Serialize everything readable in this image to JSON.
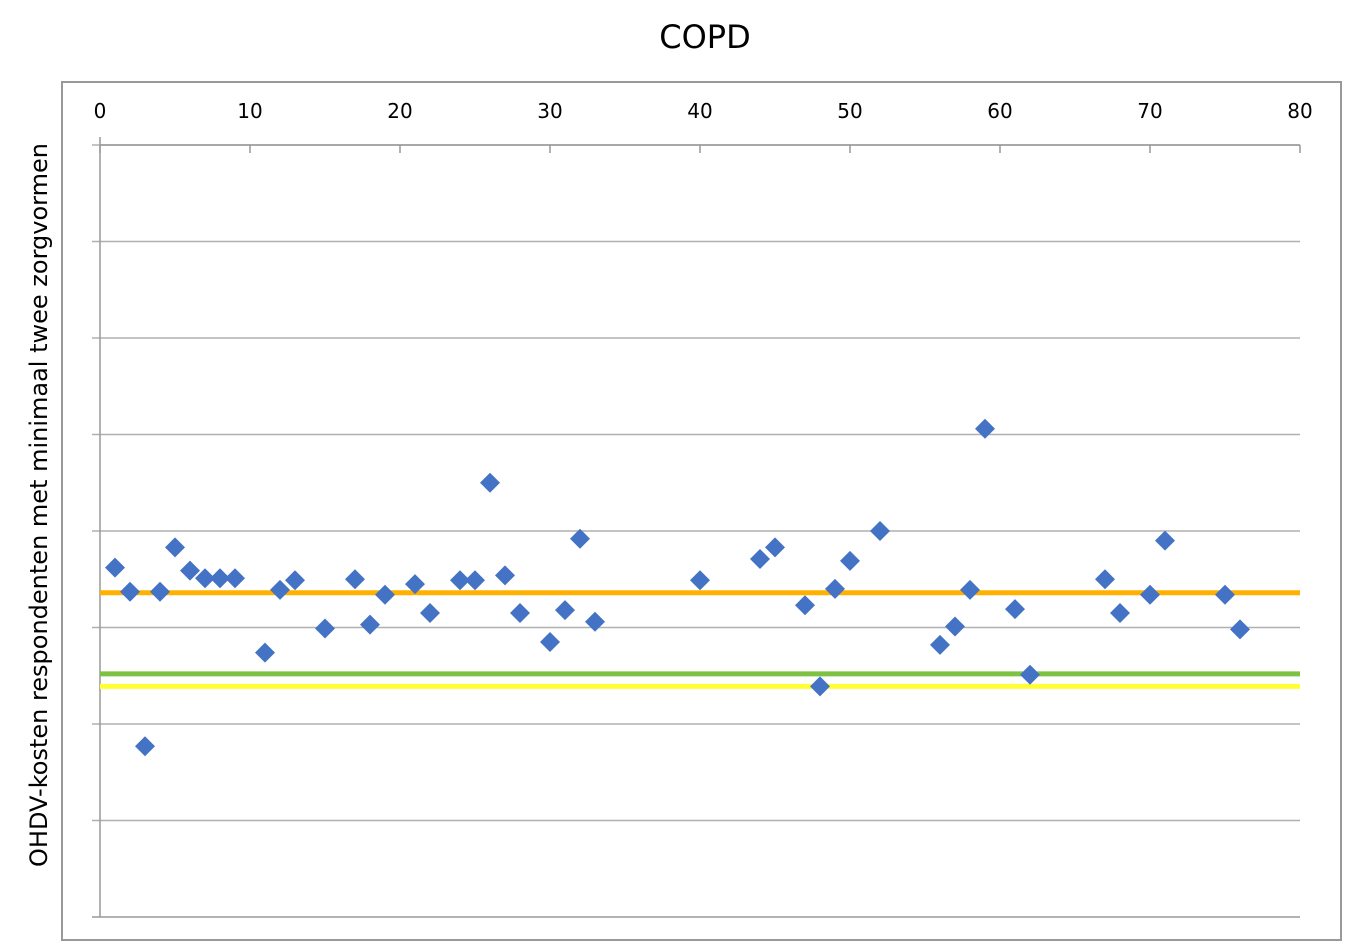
{
  "chart_data": {
    "type": "scatter",
    "title": "COPD",
    "ylabel": "OHDV-kosten respondenten met minimaal twee zorgvormen",
    "xlabel": "",
    "x_axis_position": "top",
    "xlim": [
      0,
      80
    ],
    "x_ticks": [
      0,
      10,
      20,
      30,
      40,
      50,
      60,
      70,
      80
    ],
    "ylim": [
      0,
      8
    ],
    "y_tick_labels_shown": false,
    "grid": "horizontal",
    "marker": "diamond",
    "colors": {
      "points": "#4472C4",
      "line_orange": "#FFB000",
      "line_green": "#7DC242",
      "line_yellow": "#FFFF33",
      "grid": "#B0B0B0",
      "axis": "#999999"
    },
    "series": [
      {
        "points": [
          [
            1,
            3.62
          ],
          [
            2,
            3.37
          ],
          [
            3,
            1.77
          ],
          [
            4,
            3.37
          ],
          [
            5,
            3.83
          ],
          [
            6,
            3.59
          ],
          [
            7,
            3.51
          ],
          [
            8,
            3.51
          ],
          [
            9,
            3.51
          ],
          [
            11,
            2.74
          ],
          [
            12,
            3.39
          ],
          [
            13,
            3.49
          ],
          [
            15,
            2.99
          ],
          [
            17,
            3.5
          ],
          [
            18,
            3.03
          ],
          [
            19,
            3.34
          ],
          [
            21,
            3.45
          ],
          [
            22,
            3.15
          ],
          [
            24,
            3.49
          ],
          [
            25,
            3.49
          ],
          [
            26,
            4.5
          ],
          [
            27,
            3.54
          ],
          [
            28,
            3.15
          ],
          [
            30,
            2.85
          ],
          [
            31,
            3.18
          ],
          [
            32,
            3.92
          ],
          [
            33,
            3.06
          ],
          [
            40,
            3.49
          ],
          [
            44,
            3.71
          ],
          [
            45,
            3.83
          ],
          [
            47,
            3.23
          ],
          [
            48,
            2.39
          ],
          [
            49,
            3.4
          ],
          [
            50,
            3.69
          ],
          [
            52,
            4.0
          ],
          [
            56,
            2.82
          ],
          [
            57,
            3.01
          ],
          [
            58,
            3.39
          ],
          [
            59,
            5.06
          ],
          [
            61,
            3.19
          ],
          [
            62,
            2.51
          ],
          [
            67,
            3.5
          ],
          [
            68,
            3.15
          ],
          [
            70,
            3.34
          ],
          [
            71,
            3.9
          ],
          [
            75,
            3.34
          ],
          [
            76,
            2.98
          ]
        ]
      }
    ],
    "reference_lines": [
      {
        "color": "#FFB000",
        "y": 3.36
      },
      {
        "color": "#7DC242",
        "y": 2.52
      },
      {
        "color": "#FFFF33",
        "y": 2.39
      }
    ]
  }
}
